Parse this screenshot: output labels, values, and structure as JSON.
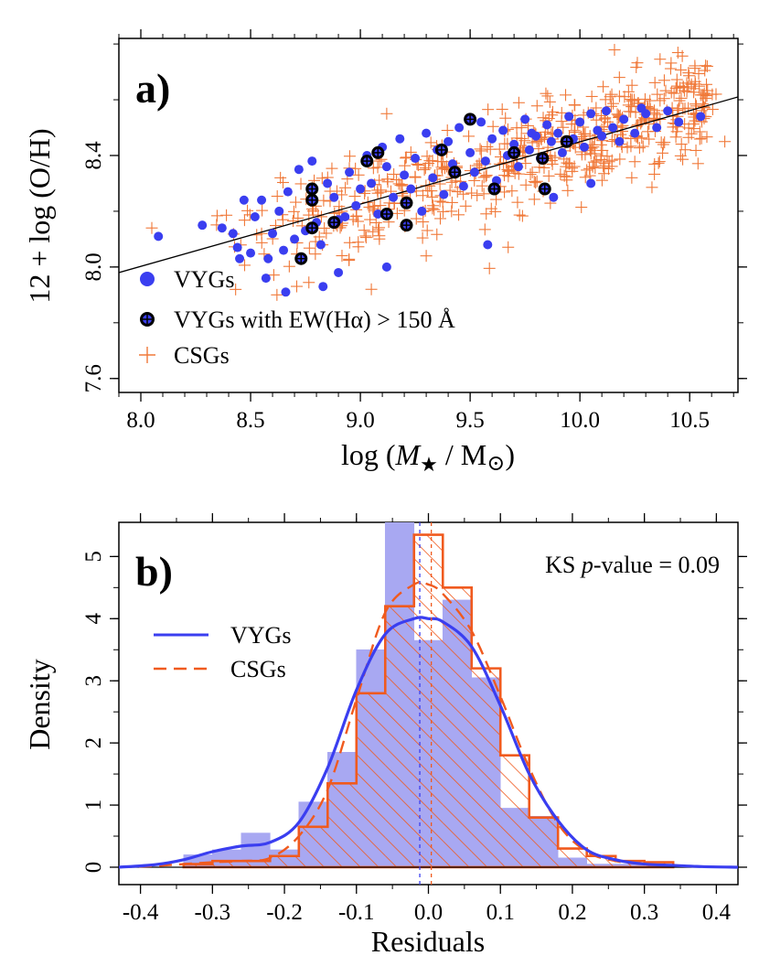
{
  "chart_data": [
    {
      "type": "scatter",
      "panel_label": "a)",
      "xlabel": "log (M★ / M⊙)",
      "xlabel_parts": {
        "prefix": "log (",
        "var": "M",
        "sub": "★",
        "suffix": " / M",
        "sun": "⊙",
        "close": ")"
      },
      "ylabel": "12 + log (O/H)",
      "xlim": [
        7.9,
        10.72
      ],
      "ylim": [
        7.55,
        8.82
      ],
      "xticks": [
        "8.0",
        "8.5",
        "9.0",
        "9.5",
        "10.0",
        "10.5"
      ],
      "xtick_values": [
        8.0,
        8.5,
        9.0,
        9.5,
        10.0,
        10.5
      ],
      "yticks": [
        "7.6",
        "8.0",
        "8.4"
      ],
      "ytick_values": [
        7.6,
        8.0,
        8.4
      ],
      "colors": {
        "vygs": "#3a3ef0",
        "csgs": "#f07838",
        "fit": "#000000"
      },
      "legend": [
        {
          "label": "VYGs"
        },
        {
          "label": "VYGs with EW(Hα) > 150 Å"
        },
        {
          "label": "CSGs"
        }
      ],
      "fit_line": {
        "x": [
          7.9,
          10.72
        ],
        "y": [
          7.98,
          8.61
        ]
      },
      "series": [
        {
          "name": "VYGs",
          "x": [
            8.08,
            8.28,
            8.37,
            8.42,
            8.44,
            8.45,
            8.47,
            8.5,
            8.52,
            8.55,
            8.57,
            8.58,
            8.6,
            8.63,
            8.65,
            8.67,
            8.7,
            8.72,
            8.75,
            8.78,
            8.8,
            8.82,
            8.85,
            8.88,
            8.9,
            8.93,
            8.95,
            8.98,
            9.0,
            9.03,
            9.05,
            9.08,
            9.1,
            9.12,
            9.15,
            9.18,
            9.2,
            9.23,
            9.25,
            9.28,
            9.3,
            9.33,
            9.35,
            9.38,
            9.4,
            9.42,
            9.45,
            9.47,
            9.5,
            9.52,
            9.55,
            9.57,
            9.6,
            9.62,
            9.65,
            9.67,
            9.7,
            9.72,
            9.75,
            9.77,
            9.8,
            9.82,
            9.85,
            9.87,
            9.9,
            9.92,
            9.95,
            9.97,
            10.0,
            10.02,
            10.05,
            10.08,
            10.1,
            10.12,
            10.15,
            10.18,
            10.2,
            10.25,
            10.3,
            10.35,
            10.4,
            10.45,
            10.55,
            8.66,
            8.83,
            8.9,
            9.12,
            9.58,
            9.78,
            9.88,
            10.05,
            10.28
          ],
          "y": [
            8.11,
            8.15,
            8.14,
            8.12,
            8.07,
            8.03,
            8.24,
            8.05,
            8.18,
            8.24,
            7.96,
            8.03,
            8.12,
            8.2,
            8.06,
            8.27,
            8.1,
            8.35,
            8.13,
            8.38,
            8.16,
            8.08,
            8.3,
            8.25,
            7.98,
            8.18,
            8.34,
            8.22,
            8.28,
            8.4,
            8.3,
            8.19,
            8.43,
            8.36,
            8.25,
            8.46,
            8.33,
            8.28,
            8.39,
            8.2,
            8.48,
            8.32,
            8.42,
            8.26,
            8.45,
            8.37,
            8.5,
            8.29,
            8.41,
            8.34,
            8.52,
            8.38,
            8.46,
            8.31,
            8.49,
            8.4,
            8.44,
            8.36,
            8.53,
            8.42,
            8.47,
            8.39,
            8.51,
            8.45,
            8.48,
            8.41,
            8.54,
            8.46,
            8.52,
            8.43,
            8.55,
            8.49,
            8.47,
            8.56,
            8.5,
            8.45,
            8.53,
            8.48,
            8.55,
            8.5,
            8.56,
            8.52,
            8.54,
            7.91,
            7.93,
            8.17,
            8.0,
            8.08,
            8.48,
            8.25,
            8.3,
            8.57
          ],
          "radius_px": 5
        },
        {
          "name": "VYGs with EW(Hα) > 150 Å",
          "x": [
            8.73,
            8.78,
            8.78,
            8.78,
            8.88,
            9.03,
            9.08,
            9.12,
            9.21,
            9.21,
            9.37,
            9.43,
            9.5,
            9.61,
            9.7,
            9.83,
            9.84,
            9.94
          ],
          "y": [
            8.03,
            8.14,
            8.24,
            8.28,
            8.16,
            8.38,
            8.41,
            8.19,
            8.15,
            8.23,
            8.42,
            8.34,
            8.53,
            8.28,
            8.41,
            8.39,
            8.28,
            8.45
          ],
          "radius_px": 7
        },
        {
          "name": "CSGs",
          "n_points": 620,
          "trend": "12+log(O/H) = 7.98 + 0.2234 (x - 7.9) with ~0.1 dex scatter, x mostly 8.3–10.6",
          "extreme_points": {
            "x": [
              8.05,
              8.55,
              8.62,
              9.05,
              9.12,
              9.3,
              10.52,
              10.58,
              10.62,
              10.66
            ],
            "y": [
              8.14,
              8.12,
              7.9,
              7.92,
              8.55,
              8.04,
              8.64,
              8.72,
              8.62,
              8.45
            ]
          }
        }
      ]
    },
    {
      "type": "histogram",
      "panel_label": "b)",
      "xlabel": "Residuals",
      "ylabel": "Density",
      "annotation": {
        "prefix": "KS ",
        "var": "p",
        "suffix": "-value = 0.09"
      },
      "xlim": [
        -0.43,
        0.43
      ],
      "ylim": [
        -0.28,
        5.55
      ],
      "xticks": [
        "-0.4",
        "-0.3",
        "-0.2",
        "-0.1",
        "0.0",
        "0.1",
        "0.2",
        "0.3",
        "0.4"
      ],
      "xtick_values": [
        -0.4,
        -0.3,
        -0.2,
        -0.1,
        0.0,
        0.1,
        0.2,
        0.3,
        0.4
      ],
      "yticks": [
        "0",
        "1",
        "2",
        "3",
        "4",
        "5"
      ],
      "ytick_values": [
        0,
        1,
        2,
        3,
        4,
        5
      ],
      "legend": [
        {
          "label": "VYGs",
          "style": "solid"
        },
        {
          "label": "CSGs",
          "style": "dashed"
        }
      ],
      "colors": {
        "vygs": "#3a3ef0",
        "vygs_fill": "#a8a8f2",
        "csgs": "#f05a1e"
      },
      "bin_edges": [
        -0.34,
        -0.3,
        -0.26,
        -0.22,
        -0.18,
        -0.14,
        -0.1,
        -0.06,
        -0.02,
        0.02,
        0.06,
        0.1,
        0.14,
        0.18,
        0.22,
        0.26,
        0.3,
        0.34
      ],
      "series": [
        {
          "name": "VYGs",
          "densities": [
            0.2,
            0.28,
            0.55,
            0.28,
            1.05,
            1.85,
            3.5,
            5.85,
            3.65,
            4.3,
            3.05,
            0.95,
            0.82,
            0.15,
            0.05,
            0.05,
            0.02
          ]
        },
        {
          "name": "CSGs",
          "densities": [
            0.05,
            0.1,
            0.1,
            0.18,
            0.65,
            1.35,
            2.8,
            4.2,
            5.35,
            4.5,
            3.2,
            1.8,
            0.8,
            0.3,
            0.18,
            0.1,
            0.08
          ]
        }
      ],
      "kde": {
        "x": [
          -0.43,
          -0.38,
          -0.34,
          -0.3,
          -0.26,
          -0.22,
          -0.18,
          -0.14,
          -0.1,
          -0.06,
          -0.02,
          0.0,
          0.02,
          0.06,
          0.1,
          0.14,
          0.18,
          0.22,
          0.26,
          0.3,
          0.34,
          0.38,
          0.43
        ],
        "vygs": [
          0.0,
          0.04,
          0.12,
          0.25,
          0.34,
          0.4,
          0.72,
          1.6,
          2.85,
          3.75,
          4.0,
          4.0,
          3.95,
          3.55,
          2.6,
          1.5,
          0.75,
          0.28,
          0.12,
          0.05,
          0.03,
          0.01,
          0.0
        ],
        "csgs": [
          0.0,
          0.02,
          0.05,
          0.08,
          0.1,
          0.15,
          0.5,
          1.25,
          2.7,
          4.1,
          4.55,
          4.55,
          4.4,
          3.8,
          2.75,
          1.6,
          0.7,
          0.25,
          0.1,
          0.05,
          0.03,
          0.01,
          0.0
        ]
      },
      "medians": {
        "vygs": -0.012,
        "csgs": 0.004
      }
    }
  ]
}
